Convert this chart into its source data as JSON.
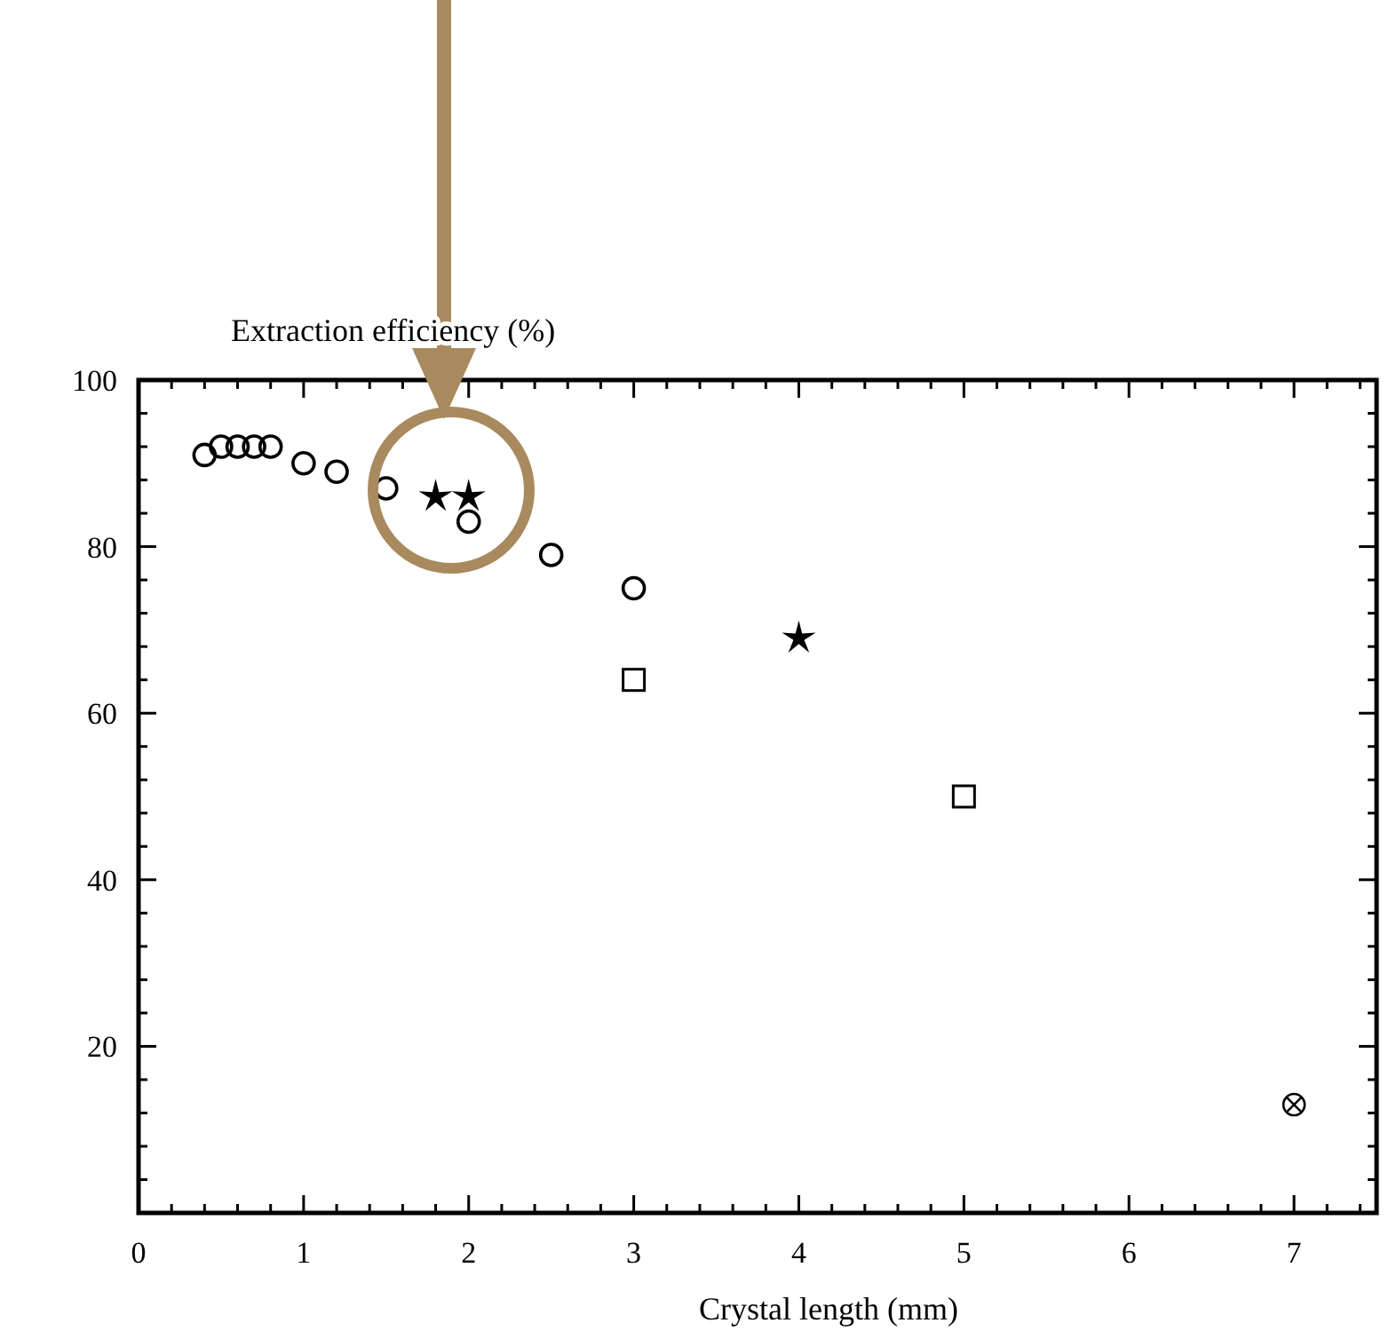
{
  "chart_data": {
    "type": "scatter",
    "ylabel": "Extraction efficiency (%)",
    "xlabel": "Crystal length (mm)",
    "xlim": [
      0,
      7.5
    ],
    "ylim": [
      0,
      100
    ],
    "xticks": [
      0,
      {
        "value": 0.2,
        "label": null
      },
      {
        "value": 0.4,
        "label": null
      },
      {
        "value": 0.6,
        "label": null
      },
      {
        "value": 0.8,
        "label": null
      },
      1,
      {
        "value": 1.2,
        "label": null
      },
      {
        "value": 1.4,
        "label": null
      },
      {
        "value": 1.6,
        "label": null
      },
      {
        "value": 1.8,
        "label": null
      },
      2,
      {
        "value": 2.2,
        "label": null
      },
      {
        "value": 2.4,
        "label": null
      },
      {
        "value": 2.6,
        "label": null
      },
      {
        "value": 2.8,
        "label": null
      },
      3,
      {
        "value": 3.2,
        "label": null
      },
      {
        "value": 3.4,
        "label": null
      },
      {
        "value": 3.6,
        "label": null
      },
      {
        "value": 3.8,
        "label": null
      },
      4,
      {
        "value": 4.2,
        "label": null
      },
      {
        "value": 4.4,
        "label": null
      },
      {
        "value": 4.6,
        "label": null
      },
      {
        "value": 4.8,
        "label": null
      },
      5,
      {
        "value": 5.2,
        "label": null
      },
      {
        "value": 5.4,
        "label": null
      },
      {
        "value": 5.6,
        "label": null
      },
      {
        "value": 5.8,
        "label": null
      },
      6,
      {
        "value": 6.2,
        "label": null
      },
      {
        "value": 6.4,
        "label": null
      },
      {
        "value": 6.6,
        "label": null
      },
      {
        "value": 6.8,
        "label": null
      },
      7,
      {
        "value": 7.2,
        "label": null
      },
      {
        "value": 7.4,
        "label": null
      }
    ],
    "yticks": [
      {
        "value": 4,
        "label": null
      },
      {
        "value": 8,
        "label": null
      },
      {
        "value": 12,
        "label": null
      },
      {
        "value": 16,
        "label": null
      },
      20,
      {
        "value": 24,
        "label": null
      },
      {
        "value": 28,
        "label": null
      },
      {
        "value": 32,
        "label": null
      },
      {
        "value": 36,
        "label": null
      },
      40,
      {
        "value": 44,
        "label": null
      },
      {
        "value": 48,
        "label": null
      },
      {
        "value": 52,
        "label": null
      },
      {
        "value": 56,
        "label": null
      },
      60,
      {
        "value": 64,
        "label": null
      },
      {
        "value": 68,
        "label": null
      },
      {
        "value": 72,
        "label": null
      },
      {
        "value": 76,
        "label": null
      },
      80,
      {
        "value": 84,
        "label": null
      },
      {
        "value": 88,
        "label": null
      },
      {
        "value": 92,
        "label": null
      },
      {
        "value": 96,
        "label": null
      },
      100
    ],
    "series": [
      {
        "color": "#000000",
        "marker": "circle",
        "x": [
          0.4,
          0.5,
          0.6,
          0.7,
          0.8,
          1.0,
          1.2,
          1.5,
          2.0,
          2.5,
          3.0
        ],
        "values": [
          91,
          92,
          92,
          92,
          92,
          90,
          89,
          87,
          83,
          79,
          75
        ]
      },
      {
        "color": "#000000",
        "marker": "star",
        "x": [
          1.8,
          2.0,
          4.0
        ],
        "values": [
          86,
          86,
          69
        ]
      },
      {
        "color": "#000000",
        "marker": "square",
        "x": [
          3.0,
          5.0
        ],
        "values": [
          64,
          50
        ]
      },
      {
        "color": "#000000",
        "marker": "cross",
        "x": [
          7.0
        ],
        "values": [
          13
        ]
      }
    ]
  }
}
